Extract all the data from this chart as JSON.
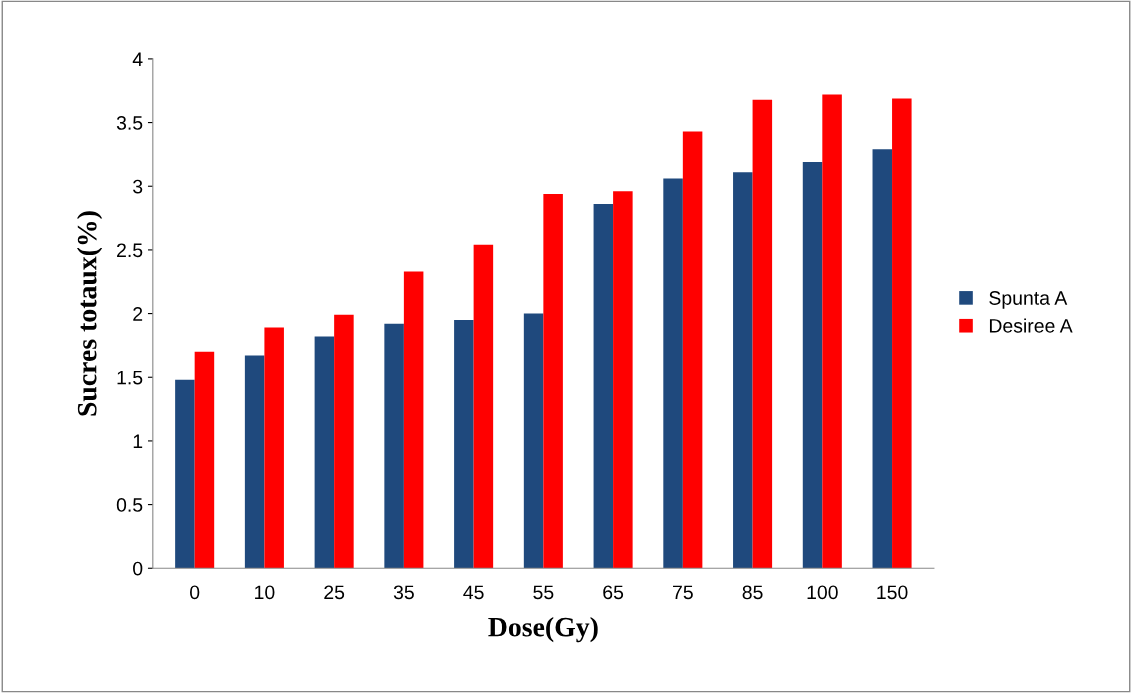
{
  "chart_data": {
    "type": "bar",
    "xlabel": "Dose(Gy)",
    "ylabel": "Sucres totaux(%)",
    "categories": [
      "0",
      "10",
      "25",
      "35",
      "45",
      "55",
      "65",
      "75",
      "85",
      "100",
      "150"
    ],
    "series": [
      {
        "name": "Spunta A",
        "color": "#1f497d",
        "values": [
          1.48,
          1.67,
          1.82,
          1.92,
          1.95,
          2.0,
          2.86,
          3.06,
          3.11,
          3.19,
          3.29
        ]
      },
      {
        "name": "Desiree A",
        "color": "#ff0000",
        "values": [
          1.7,
          1.89,
          1.99,
          2.33,
          2.54,
          2.94,
          2.96,
          3.43,
          3.68,
          3.72,
          3.69
        ]
      }
    ],
    "ylim": [
      0,
      4
    ],
    "yticks": [
      0,
      0.5,
      1,
      1.5,
      2,
      2.5,
      3,
      3.5,
      4
    ],
    "grid": false,
    "legend": "right"
  }
}
